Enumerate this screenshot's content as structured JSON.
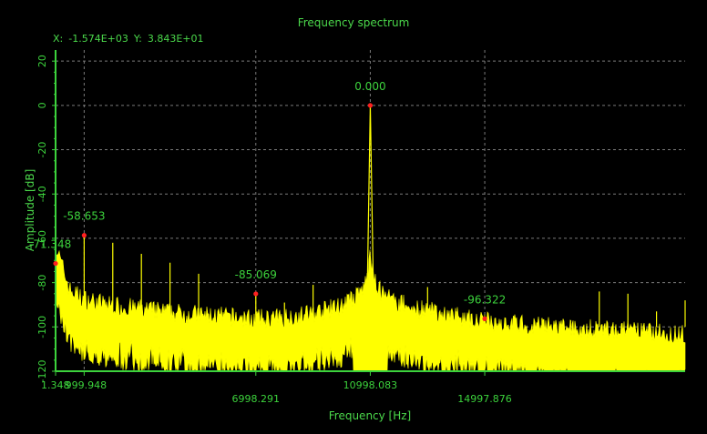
{
  "chart_data": {
    "type": "line",
    "title": "Frequency spectrum",
    "xlabel": "Frequency [Hz]",
    "ylabel": "Amplitude [dB]",
    "cursor": {
      "x_label": "X:",
      "x_value": "-1.574E+03",
      "y_label": "Y:",
      "y_value": "3.843E+01"
    },
    "xlim": [
      1.348,
      22000
    ],
    "ylim": [
      -120,
      25
    ],
    "y_ticks": [
      20,
      0,
      -20,
      -40,
      -60,
      -80,
      -100,
      -120
    ],
    "y_tick_labels": [
      "20",
      "0",
      "-20",
      "-40",
      "-60",
      "-80",
      "-100",
      "-120"
    ],
    "x_ticks_top": [
      1.348,
      999.948
    ],
    "x_ticks_top_labels": [
      "1.348",
      "999.948"
    ],
    "x_ticks_bottom": [
      6998.291,
      10998.083,
      14997.876
    ],
    "x_ticks_bottom_labels": [
      "6998.291",
      "10998.083",
      "14997.876"
    ],
    "grid": true,
    "line_color": "#ffff00",
    "marker_color": "#ff2020",
    "grid_color": "#7a7a7a",
    "axis_color": "#3cd23c",
    "markers": [
      {
        "x": 1.348,
        "y": -71.348,
        "label": "-71.348"
      },
      {
        "x": 999.948,
        "y": -58.653,
        "label": "-58.653"
      },
      {
        "x": 6998.291,
        "y": -85.069,
        "label": "-85.069"
      },
      {
        "x": 10998.083,
        "y": 0.0,
        "label": "0.000"
      },
      {
        "x": 14997.876,
        "y": -96.322,
        "label": "-96.322"
      }
    ],
    "harmonic_spurs": [
      {
        "x": 999.948,
        "y": -58.653
      },
      {
        "x": 2000,
        "y": -62
      },
      {
        "x": 3000,
        "y": -67
      },
      {
        "x": 4000,
        "y": -71
      },
      {
        "x": 5000,
        "y": -76
      },
      {
        "x": 6000,
        "y": -96
      },
      {
        "x": 6998.291,
        "y": -85.069
      },
      {
        "x": 8000,
        "y": -89
      },
      {
        "x": 9000,
        "y": -81
      },
      {
        "x": 12000,
        "y": -92
      },
      {
        "x": 13000,
        "y": -82
      },
      {
        "x": 14000,
        "y": -93
      },
      {
        "x": 14997.876,
        "y": -96.322
      },
      {
        "x": 16000,
        "y": -95
      },
      {
        "x": 17000,
        "y": -96
      },
      {
        "x": 18000,
        "y": -97
      },
      {
        "x": 19000,
        "y": -84
      },
      {
        "x": 20000,
        "y": -85
      },
      {
        "x": 21000,
        "y": -93
      },
      {
        "x": 22000,
        "y": -88
      }
    ],
    "noise_floor": {
      "x": [
        1.348,
        500,
        1000,
        2000,
        4000,
        6000,
        8000,
        10000,
        10998.083,
        12000,
        14000,
        16000,
        18000,
        20000,
        22000
      ],
      "y": [
        -72,
        -92,
        -96,
        -99,
        -102,
        -104,
        -106,
        -107,
        -108,
        -106,
        -105,
        -107,
        -109,
        -110,
        -112
      ]
    }
  }
}
